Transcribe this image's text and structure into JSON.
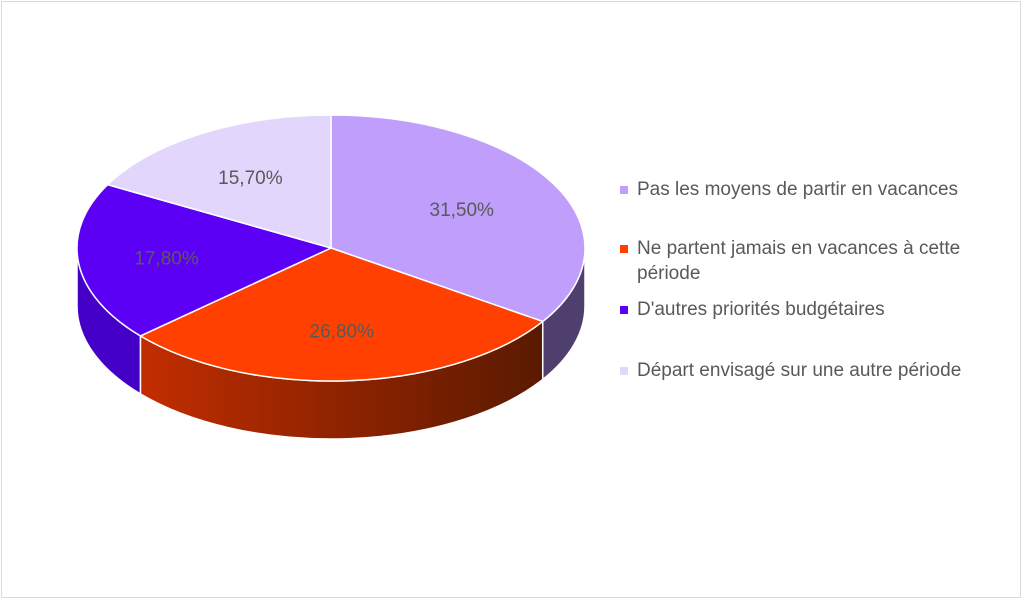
{
  "chart_data": {
    "type": "pie",
    "style": "3d",
    "title": "",
    "slices": [
      {
        "label": "Pas les moyens de partir en vacances",
        "value": 31.5,
        "display": "31,50%",
        "color": "#bf9ffb"
      },
      {
        "label": "Ne partent jamais en vacances à cette période",
        "value": 26.8,
        "display": "26,80%",
        "color": "#ff4000"
      },
      {
        "label": "D'autres priorités budgétaires",
        "value": 17.8,
        "display": "17,80%",
        "color": "#5b00f5"
      },
      {
        "label": "Départ envisagé sur une autre période",
        "value": 15.7,
        "display": "15,70%",
        "color": "#e2d6fd"
      }
    ],
    "legend_position": "right"
  }
}
